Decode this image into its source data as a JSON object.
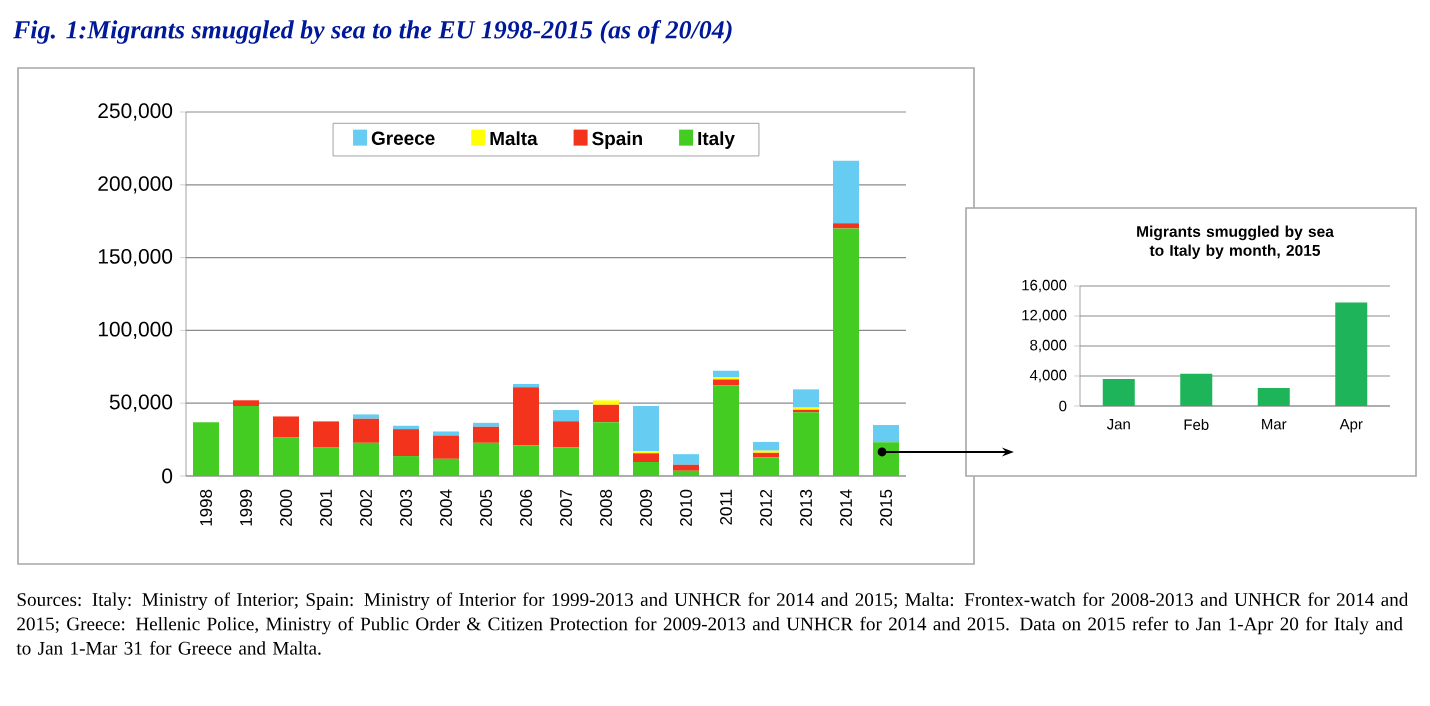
{
  "chart_data": [
    {
      "type": "bar",
      "stacked": true,
      "title": "Fig. 1:Migrants smuggled by sea to the EU 1998-2015 (as of 20/04)",
      "annotations": [
        "Sources: Italy: Ministry of Interior; Spain: Ministry of Interior for 1999-2013 and UNHCR for 2014 and 2015; Malta: Frontex-watch for 2008-2013 and UNHCR for 2014 and 2015; Greece: Hellenic Police, Ministry of Public Order & Citizen Protection for 2009-2013 and UNHCR for 2014 and 2015. Data on 2015 refer to Jan 1-Apr 20 for Italy and to Jan 1-Mar 31 for Greece and Malta."
      ],
      "categories": [
        "1998",
        "1999",
        "2000",
        "2001",
        "2002",
        "2003",
        "2004",
        "2005",
        "2006",
        "2007",
        "2008",
        "2009",
        "2010",
        "2011",
        "2012",
        "2013",
        "2014",
        "2015"
      ],
      "series": [
        {
          "name": "Italy",
          "color": "#44cc22",
          "values": [
            37000,
            48000,
            26400,
            19500,
            22800,
            13700,
            11800,
            22800,
            20900,
            19600,
            36900,
            9600,
            3600,
            62300,
            12700,
            43700,
            170000,
            23200
          ]
        },
        {
          "name": "Spain",
          "color": "#f4331c",
          "values": [
            0,
            4000,
            14500,
            18000,
            16500,
            18500,
            16000,
            11000,
            40000,
            18000,
            12000,
            6000,
            4100,
            4000,
            3200,
            1800,
            3600,
            0
          ]
        },
        {
          "name": "Malta",
          "color": "#ffff00",
          "values": [
            0,
            0,
            0,
            0,
            0,
            0,
            0,
            0,
            0,
            0,
            3000,
            1500,
            0,
            1500,
            1500,
            1500,
            0,
            0
          ]
        },
        {
          "name": "Greece",
          "color": "#66ccf2",
          "values": [
            0,
            0,
            0,
            0,
            3000,
            2300,
            2800,
            2700,
            2300,
            7700,
            0,
            31000,
            7300,
            4500,
            6000,
            12500,
            43000,
            11800
          ]
        }
      ],
      "ylim": [
        0,
        250000
      ],
      "yticks": [
        {
          "value": 0,
          "label": "0"
        },
        {
          "value": 50000,
          "label": "50,000"
        },
        {
          "value": 100000,
          "label": "100,000"
        },
        {
          "value": 150000,
          "label": "150,000"
        },
        {
          "value": 200000,
          "label": "200,000"
        },
        {
          "value": 250000,
          "label": "250,000"
        }
      ],
      "grid": "y",
      "legend": "top"
    },
    {
      "type": "bar",
      "title": "Migrants smuggled by sea to Italy by month, 2015",
      "categories": [
        "Jan",
        "Feb",
        "Mar",
        "Apr"
      ],
      "values": [
        3600,
        4300,
        2400,
        13800
      ],
      "color": "#1db45a",
      "ylim": [
        0,
        16000
      ],
      "yticks": [
        {
          "value": 0,
          "label": "0"
        },
        {
          "value": 4000,
          "label": "4,000"
        },
        {
          "value": 8000,
          "label": "8,000"
        },
        {
          "value": 12000,
          "label": "12,000"
        },
        {
          "value": 16000,
          "label": "16,000"
        }
      ],
      "grid": "y"
    }
  ]
}
